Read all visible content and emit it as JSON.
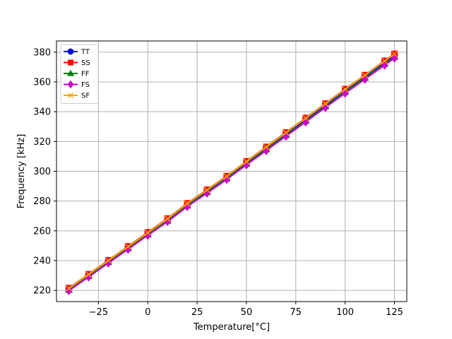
{
  "chart_data": {
    "type": "line",
    "title": "",
    "xlabel": "Temperature[°C]",
    "ylabel": "Frequency [kHz]",
    "xlim": [
      -46.25,
      131.25
    ],
    "ylim": [
      212.5,
      387.5
    ],
    "x_ticks": [
      -25,
      0,
      25,
      50,
      75,
      100,
      125
    ],
    "y_ticks": [
      220,
      240,
      260,
      280,
      300,
      320,
      340,
      360,
      380
    ],
    "x_tick_labels": [
      "−25",
      "0",
      "25",
      "50",
      "75",
      "100",
      "125"
    ],
    "y_tick_labels": [
      "220",
      "240",
      "260",
      "280",
      "300",
      "320",
      "340",
      "360",
      "380"
    ],
    "grid": true,
    "legend_position": "upper-left",
    "x": [
      -40,
      -30,
      -20,
      -10,
      0,
      10,
      20,
      30,
      40,
      50,
      60,
      70,
      80,
      90,
      100,
      110,
      120,
      125
    ],
    "series": [
      {
        "name": "TT",
        "color": "#0000ff",
        "marker": "circle",
        "values": [
          221.0,
          230.3,
          239.6,
          248.9,
          258.2,
          267.5,
          277.7,
          286.8,
          296.0,
          305.8,
          315.5,
          325.2,
          334.8,
          344.5,
          354.2,
          363.6,
          373.2,
          377.9
        ]
      },
      {
        "name": "SS",
        "color": "#ff0000",
        "marker": "square",
        "values": [
          221.6,
          230.9,
          240.3,
          249.6,
          259.0,
          268.3,
          278.5,
          287.6,
          296.8,
          306.7,
          316.4,
          326.1,
          335.8,
          345.5,
          355.2,
          364.6,
          374.2,
          378.9
        ]
      },
      {
        "name": "FF",
        "color": "#008000",
        "marker": "triangle",
        "values": [
          220.4,
          229.6,
          239.0,
          248.2,
          257.6,
          266.8,
          277.0,
          286.0,
          295.2,
          305.0,
          314.7,
          324.3,
          333.9,
          343.6,
          353.3,
          362.7,
          372.2,
          376.9
        ]
      },
      {
        "name": "FS",
        "color": "#cc00cc",
        "marker": "diamond",
        "values": [
          219.8,
          229.0,
          238.4,
          247.6,
          257.0,
          266.2,
          276.3,
          285.3,
          294.5,
          304.3,
          313.9,
          323.5,
          333.1,
          342.8,
          352.4,
          361.8,
          371.3,
          376.0
        ]
      },
      {
        "name": "SF",
        "color": "#ffa500",
        "marker": "x",
        "values": [
          221.4,
          230.7,
          240.1,
          249.4,
          258.7,
          268.1,
          278.3,
          287.4,
          296.6,
          306.5,
          316.2,
          325.9,
          335.6,
          345.3,
          355.0,
          364.4,
          374.0,
          378.7
        ]
      }
    ]
  }
}
